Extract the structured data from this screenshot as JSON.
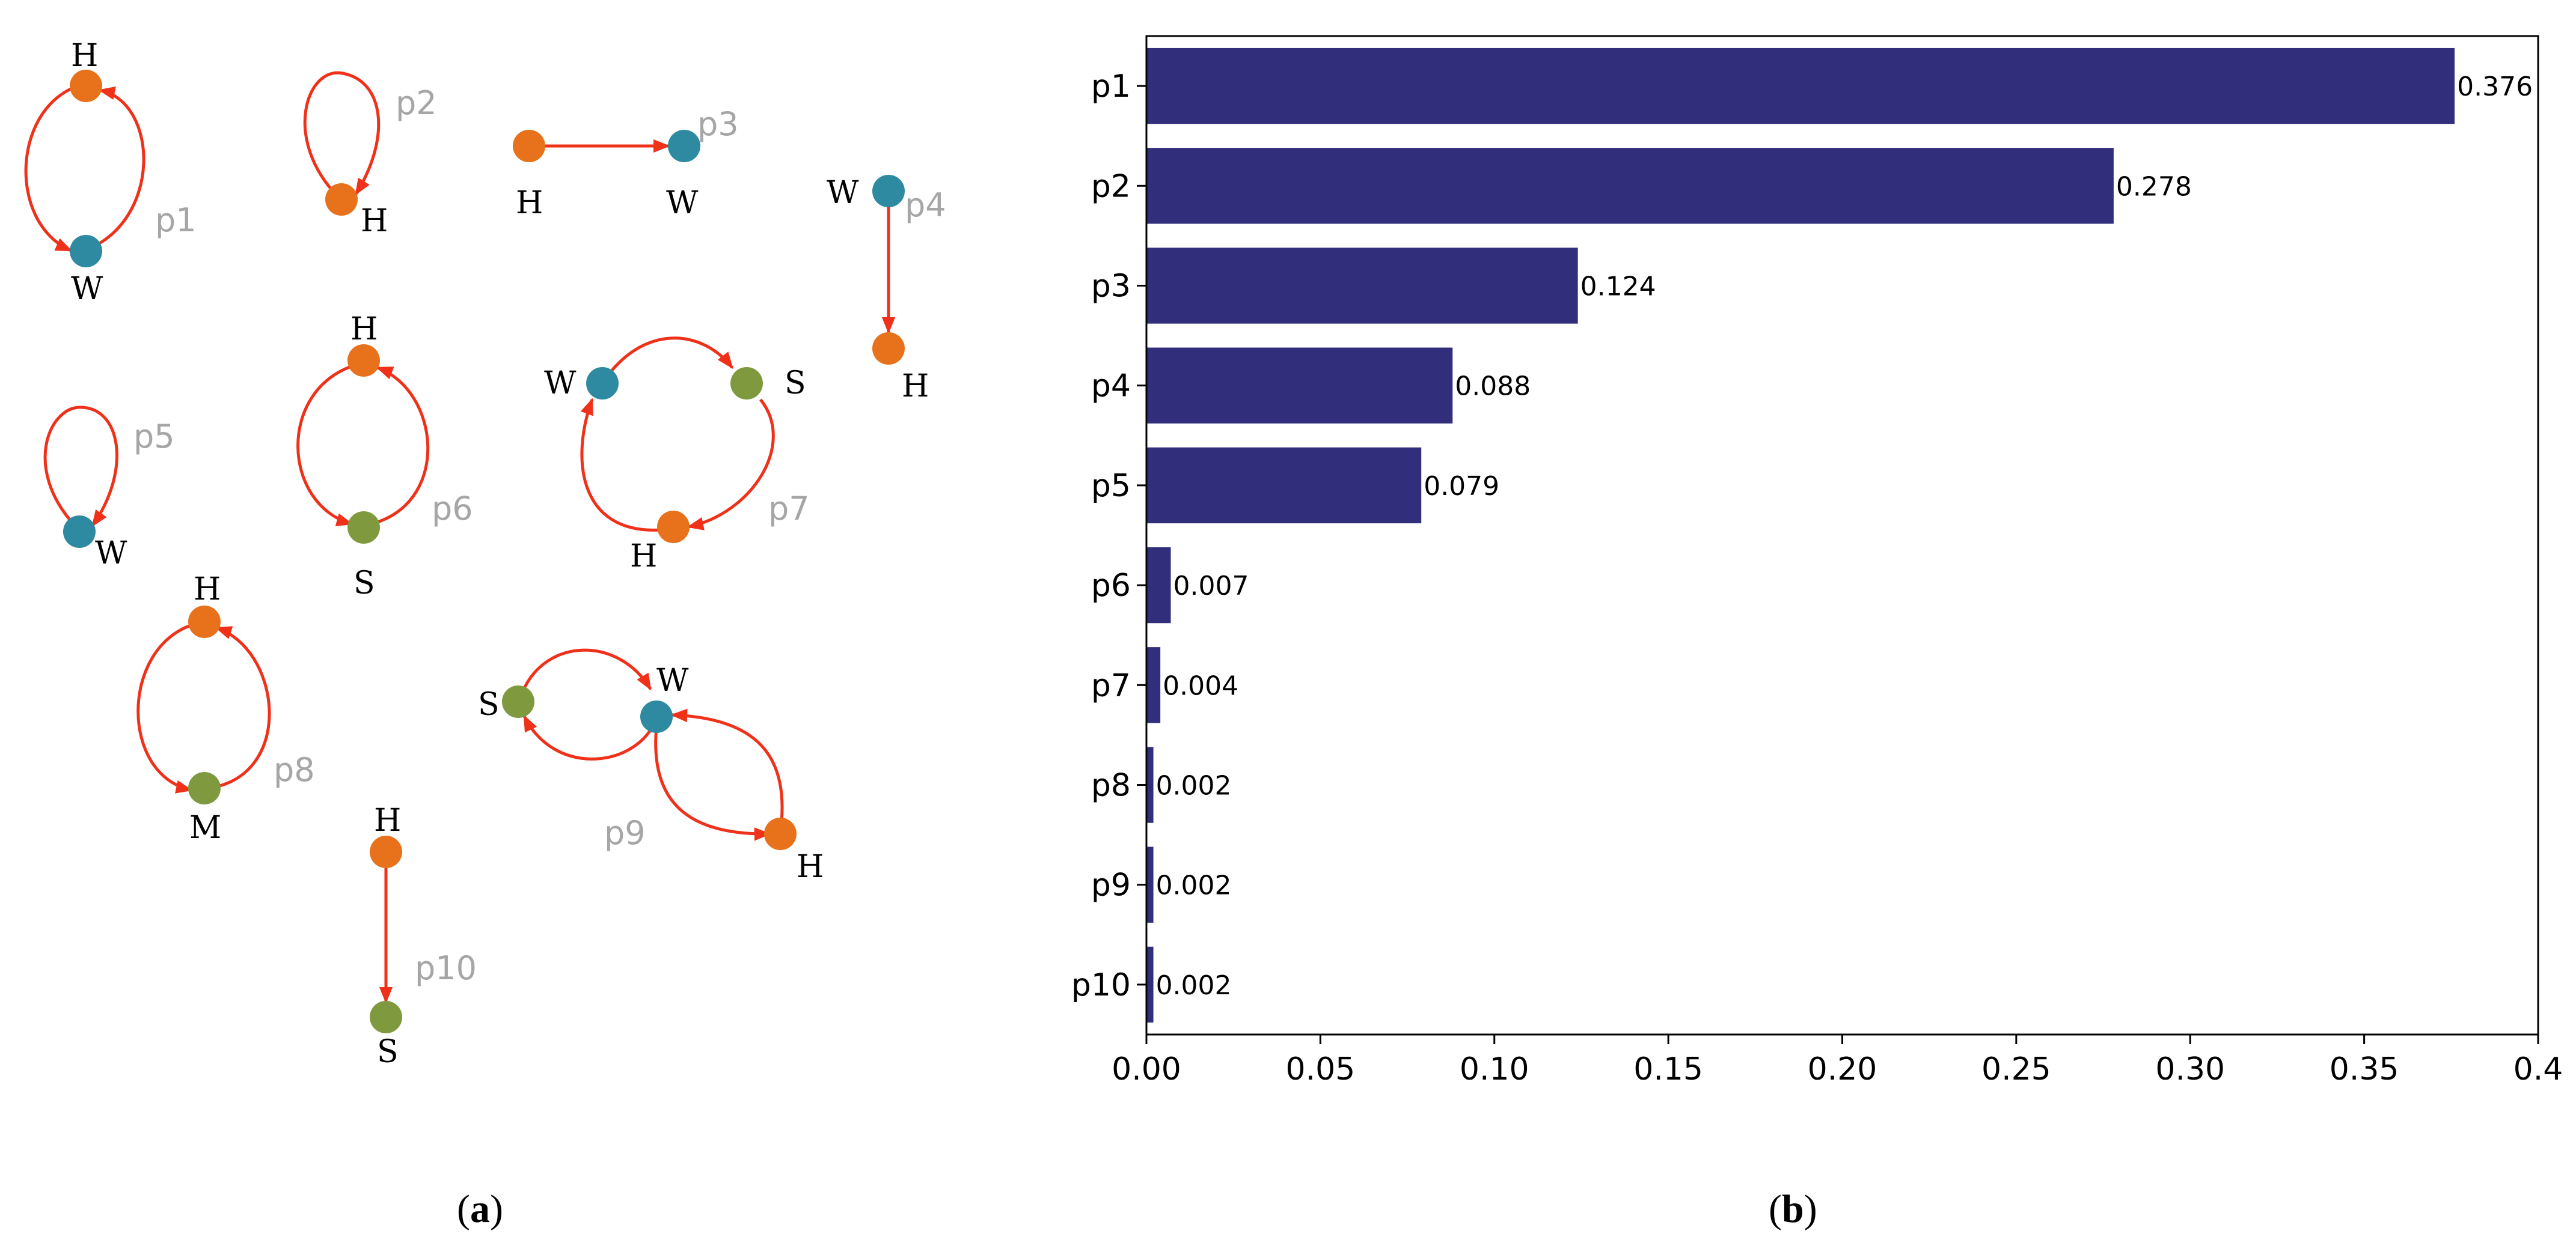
{
  "figure": {
    "panel_a": {
      "caption_letter": "a",
      "colors": {
        "H": "#e8711c",
        "W": "#2e8aa0",
        "S": "#7f9a3e",
        "M": "#7f9a3e",
        "edge": "#f0311a"
      },
      "patterns": [
        {
          "id": "p1",
          "label": "p1",
          "nodes": [
            "H",
            "W"
          ]
        },
        {
          "id": "p2",
          "label": "p2",
          "nodes": [
            "H"
          ]
        },
        {
          "id": "p3",
          "label": "p3",
          "nodes": [
            "H",
            "W"
          ]
        },
        {
          "id": "p4",
          "label": "p4",
          "nodes": [
            "W",
            "H"
          ]
        },
        {
          "id": "p5",
          "label": "p5",
          "nodes": [
            "W"
          ]
        },
        {
          "id": "p6",
          "label": "p6",
          "nodes": [
            "H",
            "S"
          ]
        },
        {
          "id": "p7",
          "label": "p7",
          "nodes": [
            "W",
            "S",
            "H"
          ]
        },
        {
          "id": "p8",
          "label": "p8",
          "nodes": [
            "H",
            "M"
          ]
        },
        {
          "id": "p9",
          "label": "p9",
          "nodes": [
            "S",
            "W",
            "H"
          ]
        },
        {
          "id": "p10",
          "label": "p10",
          "nodes": [
            "H",
            "S"
          ]
        }
      ]
    },
    "panel_b": {
      "caption_letter": "b"
    }
  },
  "chart_data": {
    "type": "bar",
    "orientation": "horizontal",
    "categories": [
      "p1",
      "p2",
      "p3",
      "p4",
      "p5",
      "p6",
      "p7",
      "p8",
      "p9",
      "p10"
    ],
    "values": [
      0.376,
      0.278,
      0.124,
      0.088,
      0.079,
      0.007,
      0.004,
      0.002,
      0.002,
      0.002
    ],
    "value_labels": [
      "0.376",
      "0.278",
      "0.124",
      "0.088",
      "0.079",
      "0.007",
      "0.004",
      "0.002",
      "0.002",
      "0.002"
    ],
    "xlim": [
      0,
      0.4
    ],
    "xticks": [
      0.0,
      0.05,
      0.1,
      0.15,
      0.2,
      0.25,
      0.3,
      0.35,
      0.4
    ],
    "xtick_labels": [
      "0.00",
      "0.05",
      "0.10",
      "0.15",
      "0.20",
      "0.25",
      "0.30",
      "0.35",
      "0.4"
    ],
    "bar_color": "#312e7c",
    "title": "",
    "xlabel": "",
    "ylabel": "",
    "grid": false
  }
}
